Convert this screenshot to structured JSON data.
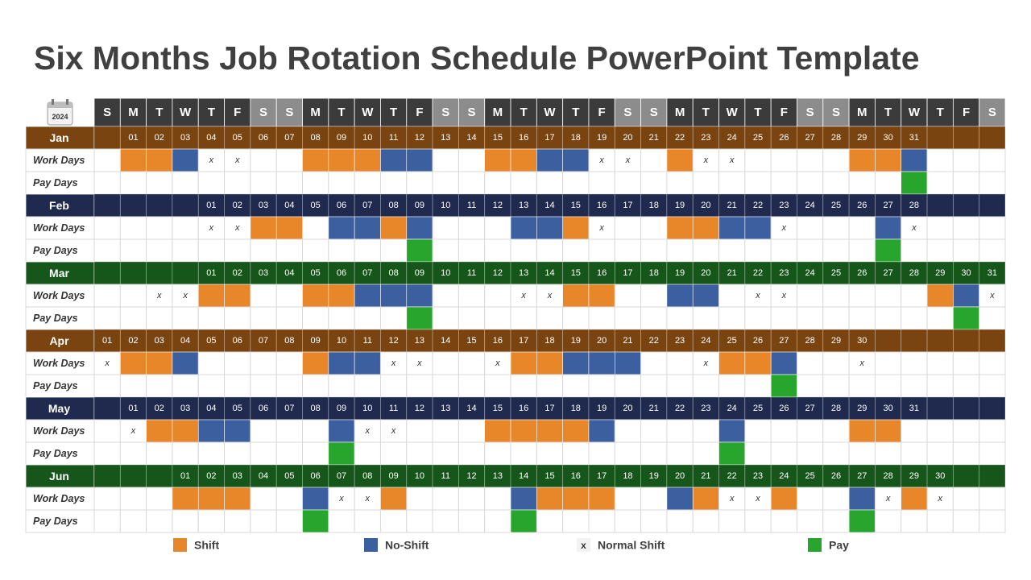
{
  "title": "Six Months Job Rotation Schedule PowerPoint Template",
  "icon_year": "2024",
  "weekdays": [
    "S",
    "M",
    "T",
    "W",
    "T",
    "F",
    "S",
    "S",
    "M",
    "T",
    "W",
    "T",
    "F",
    "S",
    "S",
    "M",
    "T",
    "W",
    "T",
    "F",
    "S",
    "S",
    "M",
    "T",
    "W",
    "T",
    "F",
    "S",
    "S",
    "M",
    "T",
    "W",
    "T",
    "F",
    "S"
  ],
  "row_labels": {
    "work": "Work Days",
    "pay": "Pay Days"
  },
  "legend": [
    {
      "key": "shift",
      "color": "#e8862a",
      "label": "Shift"
    },
    {
      "key": "no-shift",
      "color": "#3c5fa0",
      "label": "No-Shift"
    },
    {
      "key": "x",
      "label": "Normal Shift"
    },
    {
      "key": "pay",
      "color": "#28a52c",
      "label": "Pay"
    }
  ],
  "months": [
    {
      "name": "Jan",
      "color": "#7a4410",
      "days": [
        null,
        "01",
        "02",
        "03",
        "04",
        "05",
        "06",
        "07",
        "08",
        "09",
        "10",
        "11",
        "12",
        "13",
        "14",
        "15",
        "16",
        "17",
        "18",
        "19",
        "20",
        "21",
        "22",
        "23",
        "24",
        "25",
        "26",
        "27",
        "28",
        "29",
        "30",
        "31",
        null,
        null,
        null
      ],
      "work": [
        null,
        "shift",
        "shift",
        "no-shift",
        "x",
        "x",
        null,
        null,
        "shift",
        "shift",
        "shift",
        "no-shift",
        "no-shift",
        null,
        null,
        "shift",
        "shift",
        "no-shift",
        "no-shift",
        "x",
        "x",
        null,
        "shift",
        "x",
        "x",
        null,
        null,
        null,
        null,
        "shift",
        "shift",
        "no-shift",
        null,
        null,
        null
      ],
      "pay": [
        null,
        null,
        null,
        null,
        null,
        null,
        null,
        null,
        null,
        null,
        null,
        null,
        null,
        null,
        null,
        null,
        null,
        null,
        null,
        null,
        null,
        null,
        null,
        null,
        null,
        null,
        null,
        null,
        null,
        null,
        null,
        "pay",
        null,
        null,
        null
      ]
    },
    {
      "name": "Feb",
      "color": "#1f2a4e",
      "days": [
        null,
        null,
        null,
        null,
        "01",
        "02",
        "03",
        "04",
        "05",
        "06",
        "07",
        "08",
        "09",
        "10",
        "11",
        "12",
        "13",
        "14",
        "15",
        "16",
        "17",
        "18",
        "19",
        "20",
        "21",
        "22",
        "23",
        "24",
        "25",
        "26",
        "27",
        "28",
        null,
        null,
        null
      ],
      "work": [
        null,
        null,
        null,
        null,
        "x",
        "x",
        "shift",
        "shift",
        null,
        "no-shift",
        "no-shift",
        "shift",
        "no-shift",
        null,
        null,
        null,
        "no-shift",
        "no-shift",
        "shift",
        "x",
        null,
        null,
        "shift",
        "shift",
        "no-shift",
        "no-shift",
        "x",
        null,
        null,
        null,
        "no-shift",
        "x",
        null,
        null,
        null
      ],
      "pay": [
        null,
        null,
        null,
        null,
        null,
        null,
        null,
        null,
        null,
        null,
        null,
        null,
        "pay",
        null,
        null,
        null,
        null,
        null,
        null,
        null,
        null,
        null,
        null,
        null,
        null,
        null,
        null,
        null,
        null,
        null,
        "pay",
        null,
        null,
        null,
        null
      ]
    },
    {
      "name": "Mar",
      "color": "#16561a",
      "days": [
        null,
        null,
        null,
        null,
        "01",
        "02",
        "03",
        "04",
        "05",
        "06",
        "07",
        "08",
        "09",
        "10",
        "11",
        "12",
        "13",
        "14",
        "15",
        "16",
        "17",
        "18",
        "19",
        "20",
        "21",
        "22",
        "23",
        "24",
        "25",
        "26",
        "27",
        "28",
        "29",
        "30",
        "31"
      ],
      "work": [
        null,
        null,
        "x",
        "x",
        "shift",
        "shift",
        null,
        null,
        "shift",
        "shift",
        "no-shift",
        "no-shift",
        "no-shift",
        null,
        null,
        null,
        "x",
        "x",
        "shift",
        "shift",
        null,
        null,
        "no-shift",
        "no-shift",
        null,
        "x",
        "x",
        null,
        null,
        null,
        null,
        null,
        "shift",
        "no-shift",
        "x"
      ],
      "pay": [
        null,
        null,
        null,
        null,
        null,
        null,
        null,
        null,
        null,
        null,
        null,
        null,
        "pay",
        null,
        null,
        null,
        null,
        null,
        null,
        null,
        null,
        null,
        null,
        null,
        null,
        null,
        null,
        null,
        null,
        null,
        null,
        null,
        null,
        "pay",
        null
      ]
    },
    {
      "name": "Apr",
      "color": "#7a4410",
      "days": [
        "01",
        "02",
        "03",
        "04",
        "05",
        "06",
        "07",
        "08",
        "09",
        "10",
        "11",
        "12",
        "13",
        "14",
        "15",
        "16",
        "17",
        "18",
        "19",
        "20",
        "21",
        "22",
        "23",
        "24",
        "25",
        "26",
        "27",
        "28",
        "29",
        "30",
        null,
        null,
        null,
        null,
        null
      ],
      "work": [
        "x",
        "shift",
        "shift",
        "no-shift",
        null,
        null,
        null,
        null,
        "shift",
        "no-shift",
        "no-shift",
        "x",
        "x",
        null,
        null,
        "x",
        "shift",
        "shift",
        "no-shift",
        "no-shift",
        "no-shift",
        null,
        null,
        "x",
        "shift",
        "shift",
        "no-shift",
        null,
        null,
        "x",
        null,
        null,
        null,
        null,
        null
      ],
      "pay": [
        null,
        null,
        null,
        null,
        null,
        null,
        null,
        null,
        null,
        null,
        null,
        null,
        null,
        null,
        null,
        null,
        null,
        null,
        null,
        null,
        null,
        null,
        null,
        null,
        null,
        null,
        "pay",
        null,
        null,
        null,
        null,
        null,
        null,
        null,
        null
      ]
    },
    {
      "name": "May",
      "color": "#1f2a4e",
      "days": [
        null,
        "01",
        "02",
        "03",
        "04",
        "05",
        "06",
        "07",
        "08",
        "09",
        "10",
        "11",
        "12",
        "13",
        "14",
        "15",
        "16",
        "17",
        "18",
        "19",
        "20",
        "21",
        "22",
        "23",
        "24",
        "25",
        "26",
        "27",
        "28",
        "29",
        "30",
        "31",
        null,
        null,
        null
      ],
      "work": [
        null,
        "x",
        "shift",
        "shift",
        "no-shift",
        "no-shift",
        null,
        null,
        null,
        "no-shift",
        "x",
        "x",
        null,
        null,
        null,
        "shift",
        "shift",
        "shift",
        "shift",
        "no-shift",
        null,
        null,
        null,
        null,
        "no-shift",
        null,
        null,
        null,
        null,
        "shift",
        "shift",
        null,
        null,
        null,
        null
      ],
      "pay": [
        null,
        null,
        null,
        null,
        null,
        null,
        null,
        null,
        null,
        "pay",
        null,
        null,
        null,
        null,
        null,
        null,
        null,
        null,
        null,
        null,
        null,
        null,
        null,
        null,
        "pay",
        null,
        null,
        null,
        null,
        null,
        null,
        null,
        null,
        null,
        null
      ]
    },
    {
      "name": "Jun",
      "color": "#16561a",
      "days": [
        null,
        null,
        null,
        "01",
        "02",
        "03",
        "04",
        "05",
        "06",
        "07",
        "08",
        "09",
        "10",
        "11",
        "12",
        "13",
        "14",
        "15",
        "16",
        "17",
        "18",
        "19",
        "20",
        "21",
        "22",
        "23",
        "24",
        "25",
        "26",
        "27",
        "28",
        "29",
        "30",
        null,
        null
      ],
      "work": [
        null,
        null,
        null,
        "shift",
        "shift",
        "shift",
        null,
        null,
        "no-shift",
        "x",
        "x",
        "shift",
        null,
        null,
        null,
        null,
        "no-shift",
        "shift",
        "shift",
        "shift",
        null,
        null,
        "no-shift",
        "shift",
        "x",
        "x",
        "shift",
        null,
        null,
        "no-shift",
        "x",
        "shift",
        "x",
        null,
        null
      ],
      "pay": [
        null,
        null,
        null,
        null,
        null,
        null,
        null,
        null,
        "pay",
        null,
        null,
        null,
        null,
        null,
        null,
        null,
        "pay",
        null,
        null,
        null,
        null,
        null,
        null,
        null,
        null,
        null,
        null,
        null,
        null,
        "pay",
        null,
        null,
        null,
        null,
        null
      ]
    }
  ]
}
